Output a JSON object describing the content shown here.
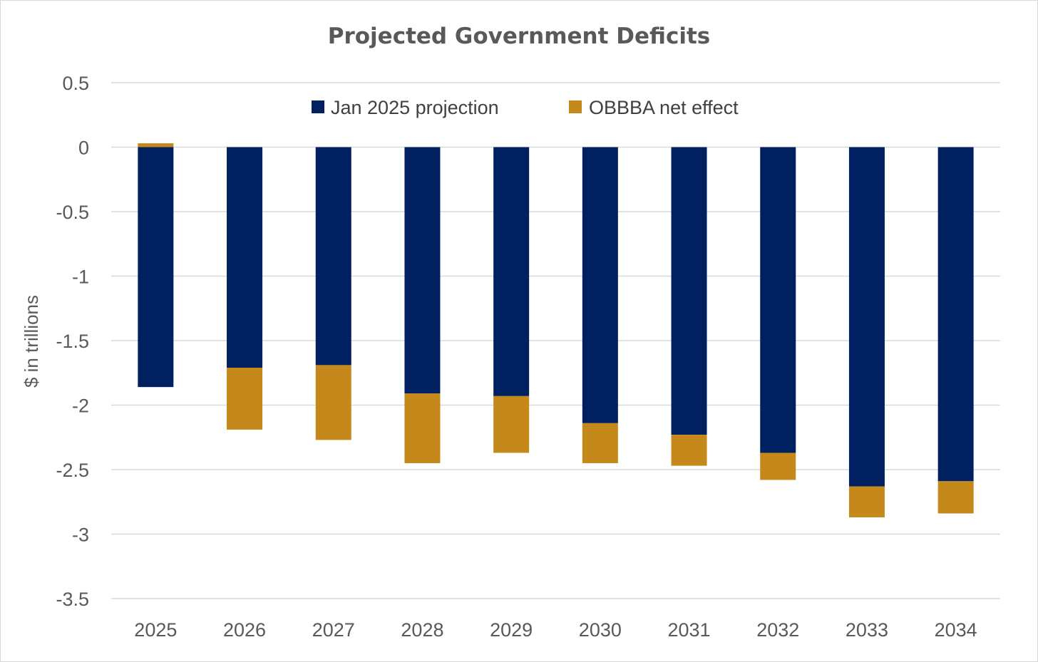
{
  "chart_data": {
    "type": "bar",
    "stacked": true,
    "title": "Projected Government Deficits",
    "ylabel": "$ in trillions",
    "xlabel": "",
    "ylim": [
      -3.5,
      0.5
    ],
    "yticks": [
      0.5,
      0,
      -0.5,
      -1,
      -1.5,
      -2,
      -2.5,
      -3,
      -3.5
    ],
    "ytick_labels": [
      "0.5",
      "0",
      "-0.5",
      "-1",
      "-1.5",
      "-2",
      "-2.5",
      "-3",
      "-3.5"
    ],
    "grid": true,
    "legend": "top-center",
    "categories": [
      "2025",
      "2026",
      "2027",
      "2028",
      "2029",
      "2030",
      "2031",
      "2032",
      "2033",
      "2034"
    ],
    "series": [
      {
        "name": "Jan 2025 projection",
        "color": "#002060",
        "values": [
          -1.86,
          -1.71,
          -1.69,
          -1.91,
          -1.93,
          -2.14,
          -2.23,
          -2.37,
          -2.63,
          -2.59
        ]
      },
      {
        "name": "OBBBA net effect",
        "color": "#C5881A",
        "values": [
          0.03,
          -0.48,
          -0.58,
          -0.54,
          -0.44,
          -0.31,
          -0.24,
          -0.21,
          -0.24,
          -0.25
        ]
      }
    ]
  }
}
